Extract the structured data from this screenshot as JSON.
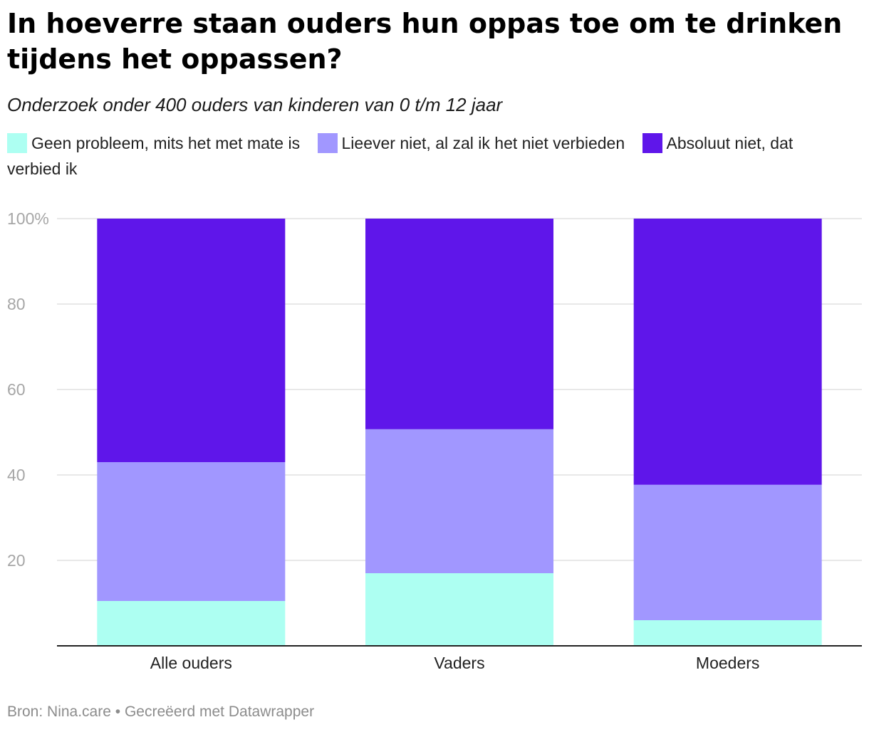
{
  "title": "In hoeverre staan ouders hun oppas toe om te drinken tijdens het oppassen?",
  "subtitle": "Onderzoek onder 400 ouders van kinderen van 0 t/m 12 jaar",
  "legend": [
    {
      "label": "Geen probleem, mits het met mate is",
      "color": "#adfff2"
    },
    {
      "label": "Lieever niet, al zal ik het niet verbieden",
      "color": "#a197ff"
    },
    {
      "label": "Absoluut niet, dat verbied ik",
      "color": "#5f16ea"
    }
  ],
  "footer": {
    "source": "Bron: Nina.care",
    "separator": "•",
    "credit": "Gecreëerd met Datawrapper"
  },
  "chart_data": {
    "type": "bar",
    "stacked": true,
    "categories": [
      "Alle ouders",
      "Vaders",
      "Moeders"
    ],
    "series": [
      {
        "name": "Geen probleem, mits het met mate is",
        "color": "#adfff2",
        "values": [
          10.5,
          17,
          6
        ]
      },
      {
        "name": "Lieever niet, al zal ik het niet verbieden",
        "color": "#a197ff",
        "values": [
          32.5,
          33.7,
          31.7
        ]
      },
      {
        "name": "Absoluut niet, dat verbied ik",
        "color": "#5f16ea",
        "values": [
          57,
          49.3,
          62.3
        ]
      }
    ],
    "ylim": [
      0,
      100
    ],
    "yticks": [
      20,
      40,
      60,
      80,
      100
    ],
    "ytick_labels": [
      "20",
      "40",
      "60",
      "80",
      "100%"
    ],
    "grid": true
  }
}
